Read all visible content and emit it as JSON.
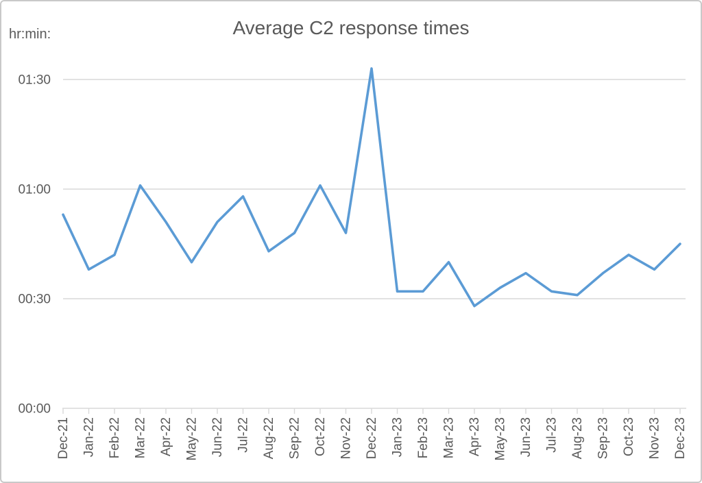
{
  "chart_data": {
    "type": "line",
    "title": "Average C2 response times",
    "y_axis_unit_label": "hr:min:",
    "categories": [
      "Dec-21",
      "Jan-22",
      "Feb-22",
      "Mar-22",
      "Apr-22",
      "May-22",
      "Jun-22",
      "Jul-22",
      "Aug-22",
      "Sep-22",
      "Oct-22",
      "Nov-22",
      "Dec-22",
      "Jan-23",
      "Feb-23",
      "Mar-23",
      "Apr-23",
      "May-23",
      "Jun-23",
      "Jul-23",
      "Aug-23",
      "Sep-23",
      "Oct-23",
      "Nov-23",
      "Dec-23"
    ],
    "values_minutes": [
      53,
      38,
      42,
      61,
      51,
      40,
      51,
      58,
      43,
      48,
      61,
      48,
      93,
      32,
      32,
      40,
      28,
      33,
      37,
      32,
      31,
      37,
      42,
      38,
      45
    ],
    "values_hr_min": [
      "00:53",
      "00:38",
      "00:42",
      "01:01",
      "00:51",
      "00:40",
      "00:51",
      "00:58",
      "00:43",
      "00:48",
      "01:01",
      "00:48",
      "01:33",
      "00:32",
      "00:32",
      "00:40",
      "00:28",
      "00:33",
      "00:37",
      "00:32",
      "00:31",
      "00:37",
      "00:42",
      "00:38",
      "00:45"
    ],
    "y_tick_labels": [
      "00:00",
      "00:30",
      "01:00",
      "01:30"
    ],
    "y_tick_minutes": [
      0,
      30,
      60,
      90
    ],
    "ylim_minutes": [
      0,
      100
    ],
    "grid": "horizontal-only",
    "legend": false,
    "x_label_rotation_deg": -90,
    "colors": {
      "line": "#5B9BD5",
      "text": "#595959",
      "gridline": "#D9D9D9",
      "axis": "#D9D9D9",
      "frame_border": "#C9C9C9",
      "background": "#FFFFFF"
    }
  }
}
